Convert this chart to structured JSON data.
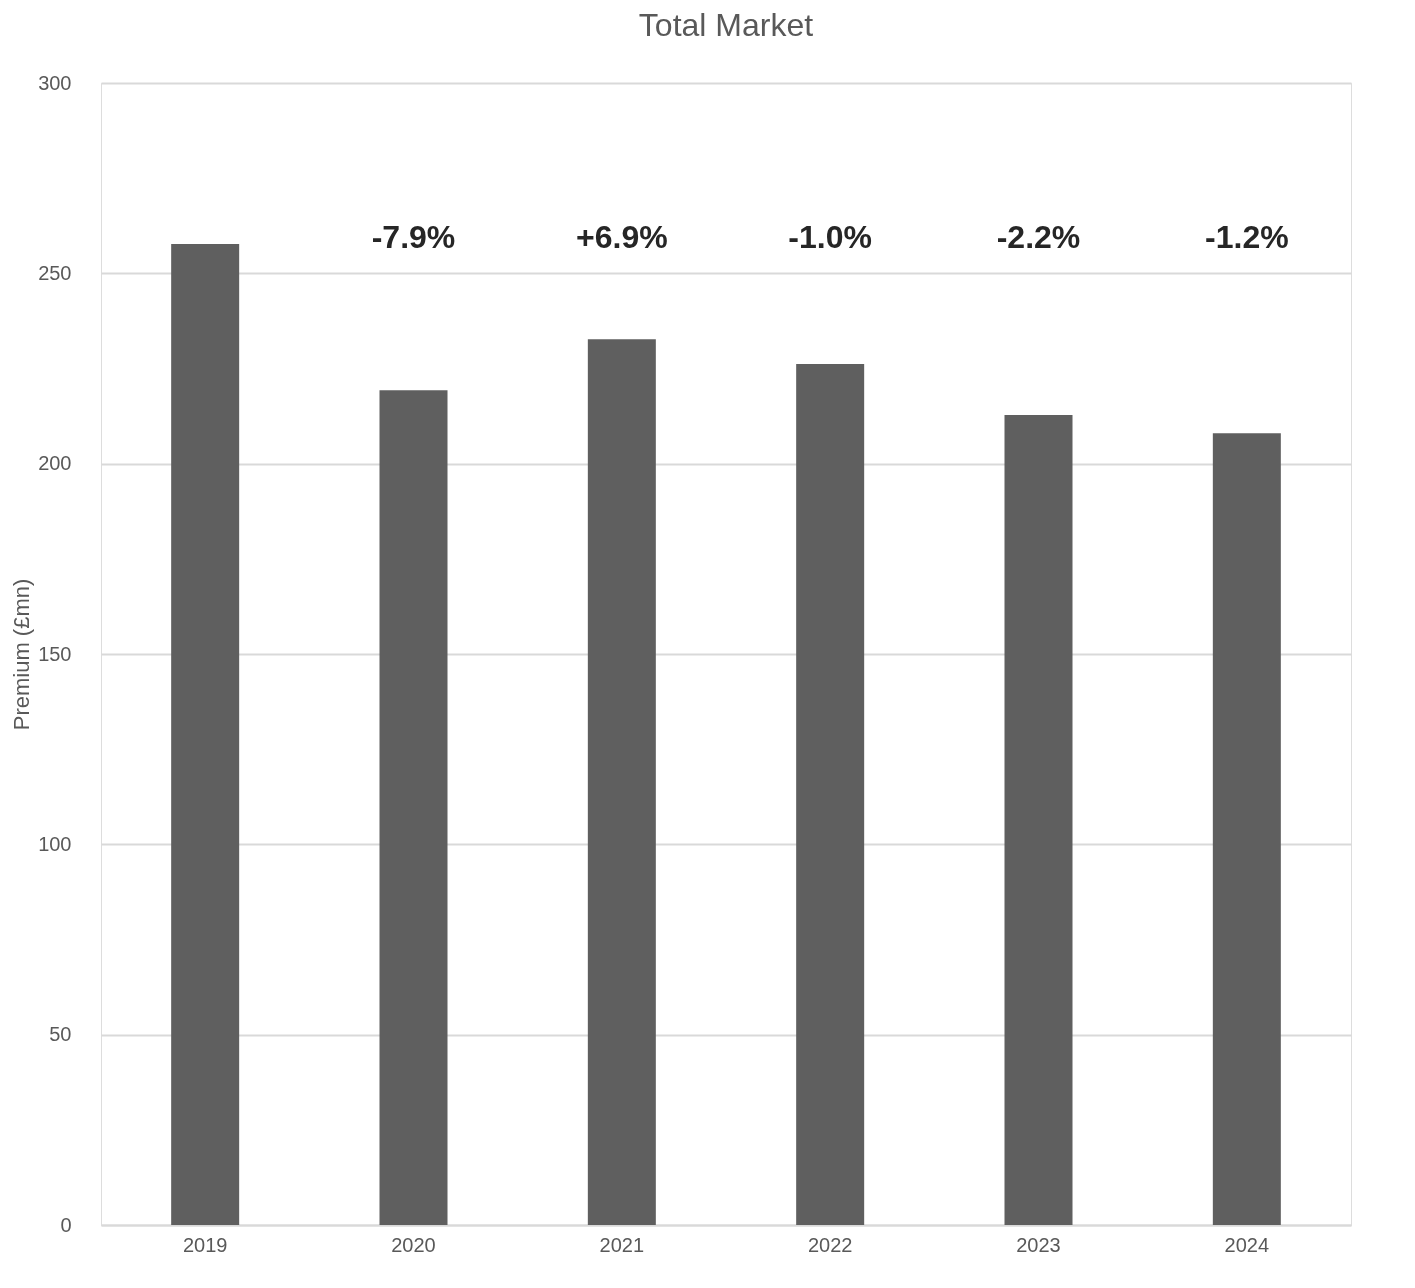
{
  "chart_data": {
    "type": "bar",
    "title": "Total Market",
    "ylabel": "Premium (£mn)",
    "categories": [
      "2019",
      "2020",
      "2021",
      "2022",
      "2023",
      "2024"
    ],
    "values": [
      257.7,
      219.3,
      232.7,
      226.2,
      212.8,
      208.0
    ],
    "color": "#5f5f5f",
    "ylim": [
      0,
      300
    ],
    "yticks": [
      0,
      50,
      100,
      150,
      200,
      250,
      300
    ],
    "grid": "y",
    "annotations": [
      "-7.9%",
      "+6.9%",
      "-1.0%",
      "-2.2%",
      "-1.2%"
    ]
  }
}
